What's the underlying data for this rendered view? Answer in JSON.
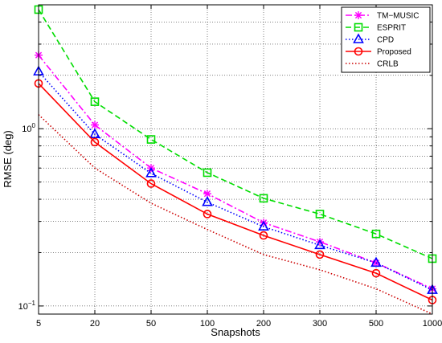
{
  "chart_data": {
    "type": "line",
    "title": "",
    "xlabel": "Snapshots",
    "ylabel": "RMSE (deg)",
    "y_scale": "log",
    "ylim": [
      0.09,
      5
    ],
    "y_ticks": [
      {
        "value": 0.1,
        "base": "10",
        "exp": "−1"
      },
      {
        "value": 1,
        "base": "10",
        "exp": "0"
      }
    ],
    "categories": [
      "5",
      "20",
      "50",
      "100",
      "200",
      "300",
      "500",
      "1000"
    ],
    "grid": true,
    "legend_position": "top-right",
    "series": [
      {
        "name": "TM−MUSIC",
        "color": "#ff00ff",
        "dash": "dashdot",
        "marker": "star",
        "values": [
          2.6,
          1.05,
          0.6,
          0.43,
          0.295,
          0.23,
          0.175,
          0.125
        ]
      },
      {
        "name": "ESPRIT",
        "color": "#00dd00",
        "dash": "dashed",
        "marker": "square",
        "values": [
          4.7,
          1.42,
          0.87,
          0.565,
          0.405,
          0.33,
          0.255,
          0.185
        ]
      },
      {
        "name": "CPD",
        "color": "#0000ff",
        "dash": "dotted",
        "marker": "triangle",
        "values": [
          2.1,
          0.93,
          0.56,
          0.385,
          0.28,
          0.22,
          0.175,
          0.123
        ]
      },
      {
        "name": "Proposed",
        "color": "#ff0000",
        "dash": "solid",
        "marker": "circle",
        "values": [
          1.8,
          0.84,
          0.49,
          0.33,
          0.25,
          0.195,
          0.153,
          0.108
        ]
      },
      {
        "name": "CRLB",
        "color": "#cc0000",
        "dash": "dotted",
        "marker": "none",
        "values": [
          1.2,
          0.6,
          0.38,
          0.27,
          0.195,
          0.16,
          0.125,
          0.09
        ]
      }
    ]
  }
}
